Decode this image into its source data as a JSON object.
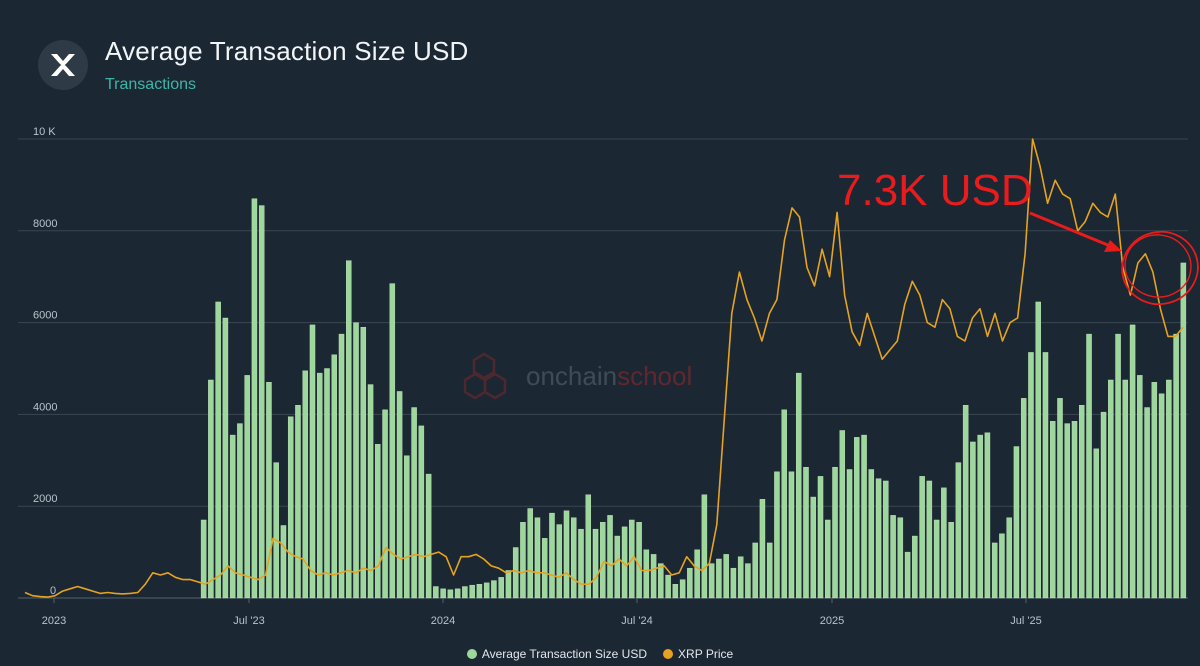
{
  "header": {
    "title": "Average Transaction Size USD",
    "subtitle": "Transactions"
  },
  "watermark": "onchainschool",
  "annotation": {
    "text": "7.3K USD",
    "color": "#e81c1c"
  },
  "colors": {
    "bar": "#9ed79b",
    "bar_edge": "#c5ecc2",
    "line": "#e6a321",
    "grid": "#3a4652",
    "axis_text": "#b9c3cc"
  },
  "legend": [
    {
      "label": "Average Transaction Size USD",
      "color": "#9ed79b"
    },
    {
      "label": "XRP Price",
      "color": "#e6a321"
    }
  ],
  "chart_data": {
    "type": "bar",
    "title": "Average Transaction Size USD",
    "subtitle": "Transactions",
    "y_ticks": [
      "0",
      "2000",
      "4000",
      "6000",
      "8000",
      "10 K"
    ],
    "x_ticks": [
      "2023",
      "Jul '23",
      "2024",
      "Jul '24",
      "2025",
      "Jul '25"
    ],
    "ylim": [
      0,
      10000
    ],
    "grid": true,
    "legend_position": "bottom",
    "series": [
      {
        "name": "Average Transaction Size USD",
        "type": "bar",
        "values": [
          1700,
          4750,
          6450,
          6100,
          3550,
          3800,
          4850,
          8700,
          8550,
          4700,
          2950,
          1580,
          3950,
          4200,
          4950,
          5950,
          4900,
          5000,
          5300,
          5750,
          7350,
          6000,
          5900,
          4650,
          3350,
          4100,
          6850,
          4500,
          3100,
          4150,
          3750,
          2700,
          250,
          200,
          180,
          200,
          250,
          280,
          300,
          330,
          380,
          450,
          600,
          1100,
          1650,
          1950,
          1750,
          1300,
          1850,
          1600,
          1900,
          1750,
          1500,
          2250,
          1500,
          1650,
          1800,
          1350,
          1550,
          1700,
          1650,
          1050,
          950,
          750,
          500,
          300,
          400,
          650,
          1050,
          2250,
          750,
          850,
          950,
          650,
          900,
          750,
          1200,
          2150,
          1200,
          2750,
          4100,
          2750,
          4900,
          2850,
          2200,
          2650,
          1700,
          2850,
          3650,
          2800,
          3500,
          3550,
          2800,
          2600,
          2550,
          1800,
          1750,
          1000,
          1350,
          2650,
          2550,
          1700,
          2400,
          1650,
          2950,
          4200,
          3400,
          3550,
          3600,
          1200,
          1400,
          1750,
          3300,
          4350,
          5350,
          6450,
          5350,
          3850,
          4350,
          3800,
          3850,
          4200,
          5750,
          3250,
          4050,
          4750,
          5750,
          4750,
          5950,
          4850,
          4150,
          4700,
          4450,
          4750,
          5750,
          7300
        ]
      },
      {
        "name": "XRP Price",
        "type": "line",
        "y_unit": "same axis (0-10K scale)",
        "values": [
          120,
          50,
          30,
          20,
          50,
          150,
          200,
          250,
          200,
          150,
          100,
          120,
          100,
          90,
          100,
          120,
          300,
          550,
          500,
          550,
          450,
          400,
          400,
          350,
          300,
          400,
          500,
          700,
          550,
          500,
          450,
          400,
          500,
          1300,
          1200,
          1000,
          900,
          850,
          600,
          500,
          550,
          500,
          550,
          600,
          550,
          650,
          600,
          700,
          1100,
          950,
          850,
          900,
          950,
          900,
          950,
          1000,
          900,
          500,
          900,
          900,
          950,
          850,
          700,
          650,
          550,
          600,
          550,
          600,
          550,
          550,
          500,
          450,
          550,
          400,
          300,
          300,
          450,
          800,
          700,
          850,
          700,
          900,
          600,
          600,
          650,
          700,
          500,
          550,
          900,
          700,
          600,
          750,
          1600,
          3900,
          6200,
          7100,
          6500,
          6100,
          5600,
          6200,
          6500,
          7800,
          8500,
          8300,
          7200,
          6800,
          7600,
          7000,
          8400,
          6600,
          5800,
          5500,
          6200,
          5700,
          5200,
          5400,
          5600,
          6400,
          6900,
          6600,
          6000,
          5900,
          6500,
          6300,
          5700,
          5600,
          6100,
          6300,
          5700,
          6200,
          5600,
          6000,
          6100,
          7500,
          10000,
          9400,
          8600,
          9100,
          8800,
          8700,
          8000,
          8200,
          8600,
          8400,
          8300,
          8800,
          7200,
          6600,
          7300,
          7500,
          7100,
          6300,
          5700,
          5700,
          5900
        ]
      }
    ]
  }
}
